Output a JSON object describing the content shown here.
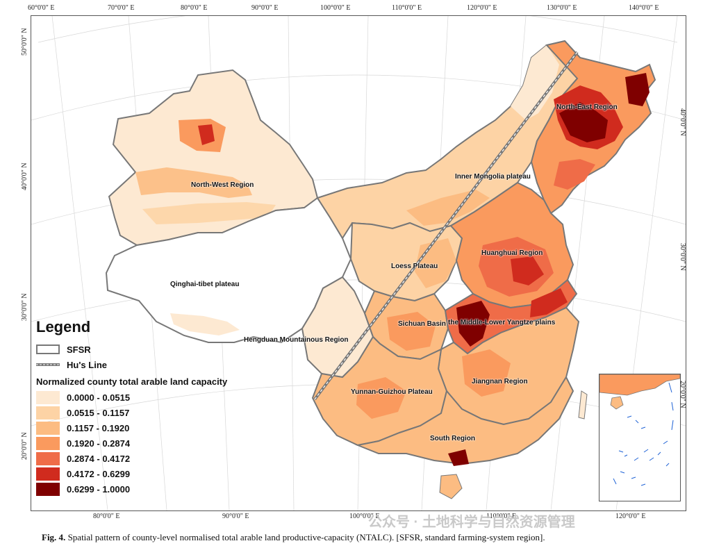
{
  "top_longitudes": [
    "60°0'0\" E",
    "70°0'0\" E",
    "80°0'0\" E",
    "90°0'0\" E",
    "100°0'0\" E",
    "110°0'0\" E",
    "120°0'0\" E",
    "130°0'0\" E",
    "140°0'0\" E"
  ],
  "bottom_longitudes": [
    "80°0'0\" E",
    "90°0'0\" E",
    "100°0'0\" E",
    "110°0'0\" E",
    "120°0'0\" E"
  ],
  "left_latitudes": [
    "50°0'0\" N",
    "40°0'0\" N",
    "30°0'0\" N",
    "20°0'0\" N"
  ],
  "right_latitudes": [
    "40°0'0\" N",
    "30°0'0\" N",
    "20°0'0\" N"
  ],
  "regions": {
    "north_east": "North-East Region",
    "north_west": "North-West Region",
    "inner_mongolia": "Inner Mongolia plateau",
    "huanghuai": "Huanghuai Region",
    "loess": "Loess Plateau",
    "qinghai_tibet": "Qinghai-tibet plateau",
    "sichuan": "Sichuan Basin",
    "yangtze": "the Middle-Lower Yangtze plains",
    "hengduan": "Hengduan Mountainous Region",
    "jiangnan": "Jiangnan Region",
    "yunnan_guizhou": "Yunnan-Guizhou Plateau",
    "south": "South Region"
  },
  "legend": {
    "title": "Legend",
    "sfsr_label": "SFSR",
    "hu_line_label": "Hu's Line",
    "subtitle": "Normalized county total arable land capacity",
    "classes": [
      {
        "label": "0.0000 - 0.0515",
        "color": "#fde9d2"
      },
      {
        "label": "0.0515 - 0.1157",
        "color": "#fdd3a5"
      },
      {
        "label": "0.1157 - 0.1920",
        "color": "#fcbc82"
      },
      {
        "label": "0.1920 - 0.2874",
        "color": "#fa9a5e"
      },
      {
        "label": "0.2874 - 0.4172",
        "color": "#ef6c48"
      },
      {
        "label": "0.4172 - 0.6299",
        "color": "#d02b1e"
      },
      {
        "label": "0.6299 - 1.0000",
        "color": "#7f0000"
      }
    ]
  },
  "colors": {
    "sfsr_border": "#777777",
    "hu_line": "#777777",
    "no_data": "#ffffff",
    "inset_islands": "#1f63d6"
  },
  "caption": {
    "label": "Fig. 4.",
    "text": "Spatial pattern of county-level normalised total arable land productive-capacity (NTALC). [SFSR, standard farming-system region]."
  },
  "watermark": "公众号 · 土地科学与自然资源管理"
}
